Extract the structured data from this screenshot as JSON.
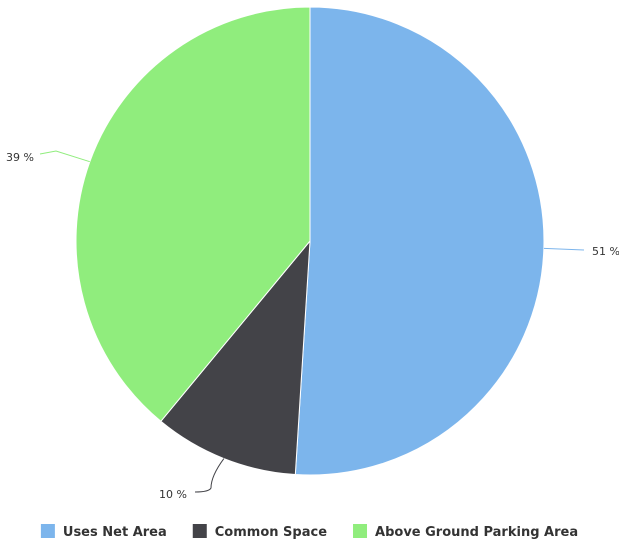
{
  "chart_data": {
    "type": "pie",
    "slices": [
      {
        "label": "Uses Net Area",
        "value": 51,
        "color": "#7cb5ec",
        "data_label": "51 %"
      },
      {
        "label": "Common Space",
        "value": 10,
        "color": "#434348",
        "data_label": "10 %"
      },
      {
        "label": "Above Ground Parking Area",
        "value": 39,
        "color": "#90ed7d",
        "data_label": "39 %"
      }
    ],
    "start_angle_deg": 0,
    "direction": "clockwise",
    "legend_position": "bottom-center",
    "label_color": "#333333",
    "legend_text_color": "#333333"
  }
}
